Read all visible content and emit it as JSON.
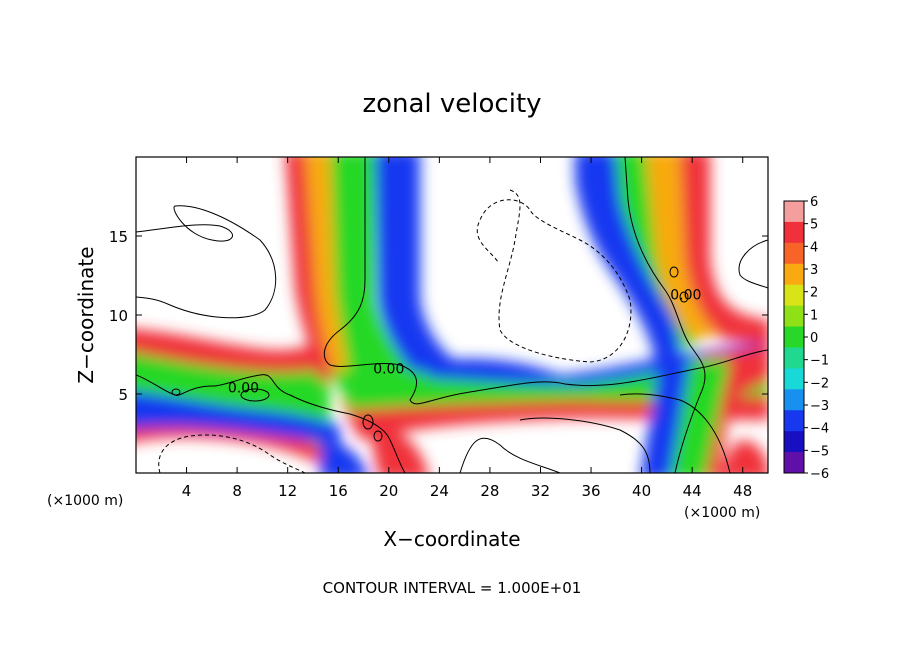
{
  "chart_data": {
    "type": "heatmap",
    "title": "zonal velocity",
    "xlabel": "X−coordinate",
    "ylabel": "Z−coordinate",
    "x_unit_left": "(×1000 m)",
    "x_unit_right": "(×1000 m)",
    "xlim": [
      0,
      50
    ],
    "ylim": [
      0,
      20
    ],
    "x_ticks": [
      4,
      8,
      12,
      16,
      20,
      24,
      28,
      32,
      36,
      40,
      44,
      48
    ],
    "y_ticks": [
      5,
      10,
      15
    ],
    "colorbar": {
      "levels": [
        6,
        5,
        4,
        3,
        2,
        1,
        0,
        -1,
        -2,
        -3,
        -4,
        -5,
        -6
      ],
      "labels": [
        "6",
        "5",
        "4",
        "3",
        "2",
        "1",
        "0",
        "−1",
        "−2",
        "−3",
        "−4",
        "−5",
        "−6"
      ],
      "colors": [
        "#f49e9e",
        "#f0303a",
        "#f86428",
        "#f8aa10",
        "#d8e418",
        "#90e018",
        "#28d828",
        "#20d890",
        "#18d8d8",
        "#1890f0",
        "#1838f0",
        "#1810c0",
        "#6010a8"
      ]
    },
    "contour_labels": [
      {
        "text": "0.00",
        "x": 20,
        "y": 6.6
      },
      {
        "text": "0.00",
        "x": 8.5,
        "y": 5.4
      },
      {
        "text": "0.00",
        "x": 43.5,
        "y": 11.3
      }
    ],
    "contour_interval": "CONTOUR INTERVAL = 1.000E+01"
  }
}
